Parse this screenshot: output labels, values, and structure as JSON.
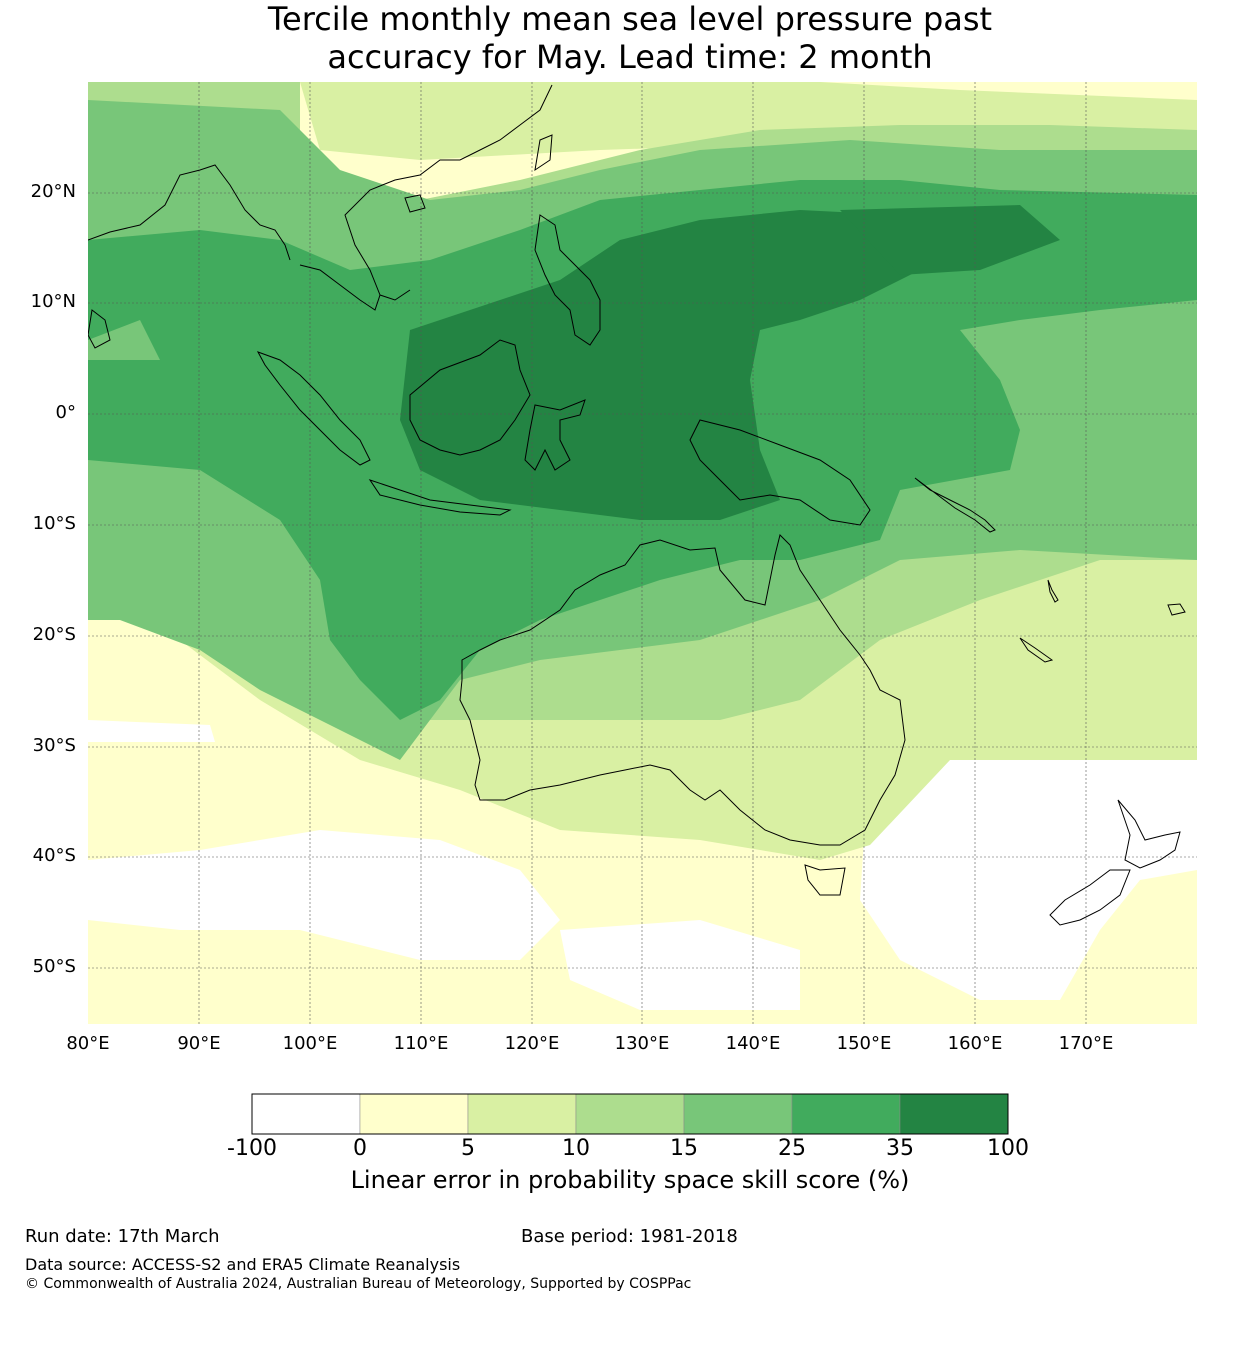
{
  "title": {
    "line1": "Tercile monthly mean sea level pressure past",
    "line2": "accuracy for May. Lead time: 2 month"
  },
  "map": {
    "lon_range": [
      80,
      180
    ],
    "lat_range": [
      -55,
      30
    ],
    "lat_ticks": [
      {
        "value": 20,
        "label": "20°N"
      },
      {
        "value": 10,
        "label": "10°N"
      },
      {
        "value": 0,
        "label": "0°"
      },
      {
        "value": -10,
        "label": "10°S"
      },
      {
        "value": -20,
        "label": "20°S"
      },
      {
        "value": -30,
        "label": "30°S"
      },
      {
        "value": -40,
        "label": "40°S"
      },
      {
        "value": -50,
        "label": "50°S"
      }
    ],
    "lon_ticks": [
      {
        "value": 80,
        "label": "80°E"
      },
      {
        "value": 90,
        "label": "90°E"
      },
      {
        "value": 100,
        "label": "100°E"
      },
      {
        "value": 110,
        "label": "110°E"
      },
      {
        "value": 120,
        "label": "120°E"
      },
      {
        "value": 130,
        "label": "130°E"
      },
      {
        "value": 140,
        "label": "140°E"
      },
      {
        "value": 150,
        "label": "150°E"
      },
      {
        "value": 160,
        "label": "160°E"
      },
      {
        "value": 170,
        "label": "170°E"
      }
    ]
  },
  "colorbar": {
    "ticks": [
      "-100",
      "0",
      "5",
      "10",
      "15",
      "25",
      "35",
      "100"
    ],
    "colors": [
      "#ffffff",
      "#ffffcc",
      "#d9f0a3",
      "#addd8e",
      "#78c679",
      "#41ab5d",
      "#238443"
    ],
    "label": "Linear error in probability space skill score (%)"
  },
  "footer": {
    "run_date": "Run date: 17th March",
    "base_period": "Base period: 1981-2018",
    "data_source": "Data source: ACCESS-S2 and ERA5 Climate Reanalysis",
    "copyright": "© Commonwealth of Australia 2024, Australian Bureau of Meteorology, Supported by COSPPac"
  }
}
